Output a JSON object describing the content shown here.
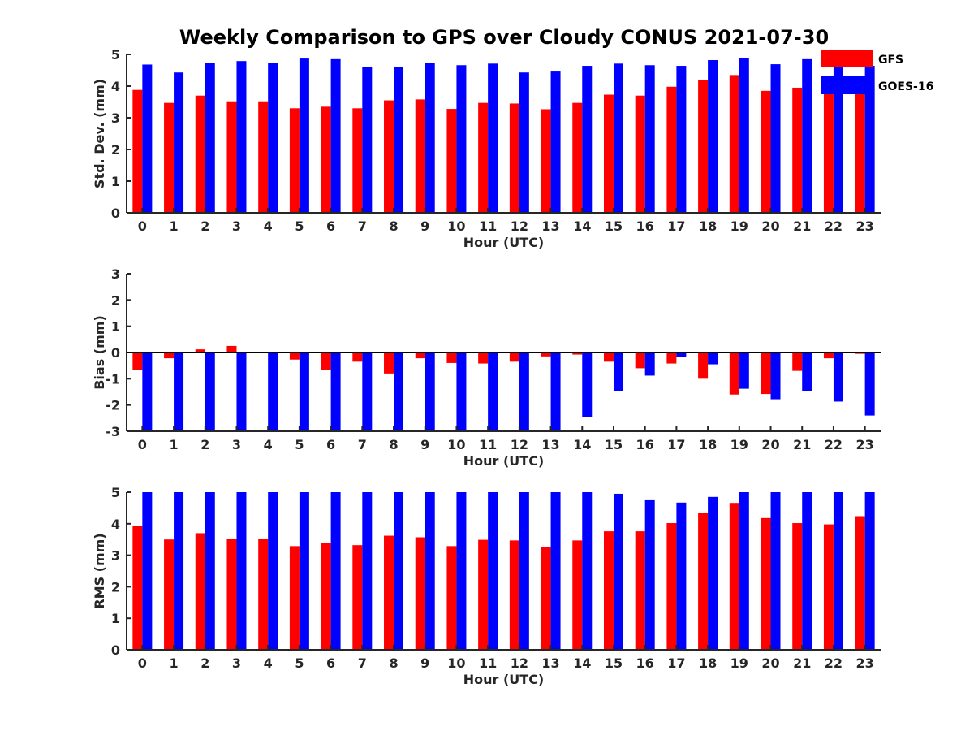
{
  "figure_title": "Weekly Comparison to GPS over Cloudy CONUS 2021-07-30",
  "colors": {
    "GFS": "#ff0000",
    "GOES-16": "#0000ff"
  },
  "legend": {
    "entries": [
      "GFS",
      "GOES-16"
    ],
    "placement": "top-right"
  },
  "chart_data": [
    {
      "type": "bar",
      "title": "Weekly Comparison to GPS over Cloudy CONUS 2021-07-30",
      "xlabel": "Hour (UTC)",
      "ylabel": "Std. Dev. (mm)",
      "ylim": [
        0,
        5
      ],
      "yticks": [
        0,
        1,
        2,
        3,
        4,
        5
      ],
      "categories": [
        "0",
        "1",
        "2",
        "3",
        "4",
        "5",
        "6",
        "7",
        "8",
        "9",
        "10",
        "11",
        "12",
        "13",
        "14",
        "15",
        "16",
        "17",
        "18",
        "19",
        "20",
        "21",
        "22",
        "23"
      ],
      "series": [
        {
          "name": "GFS",
          "values": [
            3.88,
            3.47,
            3.7,
            3.52,
            3.52,
            3.3,
            3.35,
            3.3,
            3.55,
            3.58,
            3.28,
            3.47,
            3.45,
            3.27,
            3.47,
            3.73,
            3.7,
            3.98,
            4.2,
            4.35,
            3.85,
            3.95,
            3.97,
            3.8
          ]
        },
        {
          "name": "GOES-16",
          "values": [
            4.68,
            4.43,
            4.74,
            4.79,
            4.74,
            4.87,
            4.85,
            4.61,
            4.61,
            4.74,
            4.66,
            4.71,
            4.43,
            4.46,
            4.64,
            4.71,
            4.66,
            4.64,
            4.82,
            4.89,
            4.69,
            4.85,
            4.74,
            4.64
          ]
        }
      ]
    },
    {
      "type": "bar",
      "xlabel": "Hour (UTC)",
      "ylabel": "Bias (mm)",
      "ylim": [
        -3,
        3
      ],
      "yticks": [
        -3,
        -2,
        -1,
        0,
        1,
        2,
        3
      ],
      "zero_line": true,
      "categories": [
        "0",
        "1",
        "2",
        "3",
        "4",
        "5",
        "6",
        "7",
        "8",
        "9",
        "10",
        "11",
        "12",
        "13",
        "14",
        "15",
        "16",
        "17",
        "18",
        "19",
        "20",
        "21",
        "22",
        "23"
      ],
      "series": [
        {
          "name": "GFS",
          "values": [
            -0.68,
            -0.22,
            0.12,
            0.25,
            -0.02,
            -0.27,
            -0.65,
            -0.35,
            -0.8,
            -0.22,
            -0.4,
            -0.42,
            -0.35,
            -0.15,
            -0.08,
            -0.35,
            -0.6,
            -0.42,
            -1.0,
            -1.6,
            -1.58,
            -0.7,
            -0.22,
            -0.05
          ]
        },
        {
          "name": "GOES-16",
          "values": [
            -3.0,
            -3.0,
            -3.0,
            -3.0,
            -3.0,
            -3.0,
            -3.0,
            -3.0,
            -3.0,
            -3.0,
            -3.0,
            -3.0,
            -3.0,
            -3.0,
            -2.47,
            -1.48,
            -0.88,
            -0.18,
            -0.45,
            -1.38,
            -1.78,
            -1.48,
            -1.87,
            -2.4
          ]
        }
      ]
    },
    {
      "type": "bar",
      "xlabel": "Hour (UTC)",
      "ylabel": "RMS (mm)",
      "ylim": [
        0,
        5
      ],
      "yticks": [
        0,
        1,
        2,
        3,
        4,
        5
      ],
      "categories": [
        "0",
        "1",
        "2",
        "3",
        "4",
        "5",
        "6",
        "7",
        "8",
        "9",
        "10",
        "11",
        "12",
        "13",
        "14",
        "15",
        "16",
        "17",
        "18",
        "19",
        "20",
        "21",
        "22",
        "23"
      ],
      "series": [
        {
          "name": "GFS",
          "values": [
            3.93,
            3.5,
            3.7,
            3.53,
            3.53,
            3.29,
            3.39,
            3.32,
            3.62,
            3.57,
            3.29,
            3.49,
            3.47,
            3.27,
            3.47,
            3.76,
            3.76,
            4.02,
            4.33,
            4.66,
            4.18,
            4.02,
            3.98,
            4.24
          ]
        },
        {
          "name": "GOES-16",
          "values": [
            5.0,
            5.0,
            5.0,
            5.0,
            5.0,
            5.0,
            5.0,
            5.0,
            5.0,
            5.0,
            5.0,
            5.0,
            5.0,
            5.0,
            5.0,
            4.95,
            4.77,
            4.67,
            4.85,
            5.0,
            5.0,
            5.0,
            5.0,
            5.0
          ]
        }
      ]
    }
  ]
}
